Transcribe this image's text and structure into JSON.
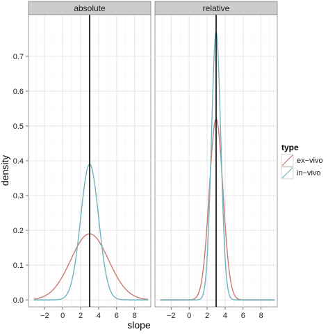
{
  "chart_data": {
    "type": "line",
    "xlabel": "slope",
    "ylabel": "density",
    "xlim": [
      -3.8,
      9.8
    ],
    "ylim": [
      -0.02,
      0.82
    ],
    "x_ticks": [
      -2,
      0,
      2,
      4,
      6,
      8
    ],
    "x_tick_labels": [
      "−2",
      "0",
      "2",
      "4",
      "6",
      "8"
    ],
    "y_ticks": [
      0.0,
      0.1,
      0.2,
      0.3,
      0.4,
      0.5,
      0.6,
      0.7
    ],
    "y_tick_labels": [
      "0.0",
      "0.1",
      "0.2",
      "0.3",
      "0.4",
      "0.5",
      "0.6",
      "0.7"
    ],
    "grid": true,
    "vline": 3.0,
    "legend": {
      "title": "type",
      "position": "right",
      "entries": [
        {
          "label": "ex−vivo",
          "color": "#C97A70"
        },
        {
          "label": "in−vivo",
          "color": "#6FB3BE"
        }
      ]
    },
    "panels": [
      {
        "strip": "absolute",
        "xrange": [
          -3.2,
          9.5
        ],
        "series": [
          {
            "type": "ex−vivo",
            "color": "#C97A70",
            "mean": 3.0,
            "sd": 2.1,
            "peak": 0.19
          },
          {
            "type": "in−vivo",
            "color": "#6FB3BE",
            "mean": 3.0,
            "sd": 1.0,
            "peak": 0.39
          }
        ]
      },
      {
        "strip": "relative",
        "xrange": [
          -3.2,
          9.5
        ],
        "series": [
          {
            "type": "ex−vivo",
            "color": "#C97A70",
            "mean": 3.0,
            "sd": 0.76,
            "peak": 0.52
          },
          {
            "type": "in−vivo",
            "color": "#6FB3BE",
            "mean": 3.0,
            "sd": 0.52,
            "peak": 0.77
          }
        ]
      }
    ]
  }
}
